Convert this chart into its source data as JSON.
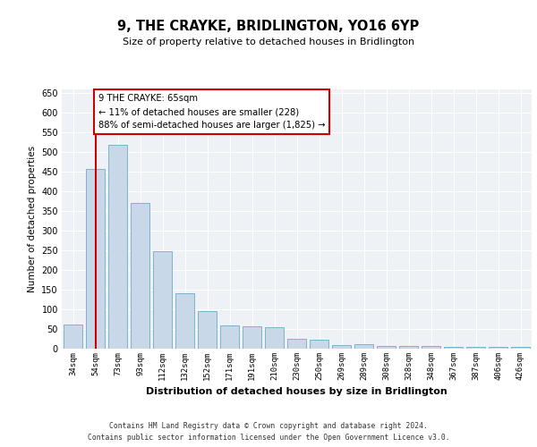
{
  "title": "9, THE CRAYKE, BRIDLINGTON, YO16 6YP",
  "subtitle": "Size of property relative to detached houses in Bridlington",
  "xlabel": "Distribution of detached houses by size in Bridlington",
  "ylabel": "Number of detached properties",
  "categories": [
    "34sqm",
    "54sqm",
    "73sqm",
    "93sqm",
    "112sqm",
    "132sqm",
    "152sqm",
    "171sqm",
    "191sqm",
    "210sqm",
    "230sqm",
    "250sqm",
    "269sqm",
    "289sqm",
    "308sqm",
    "328sqm",
    "348sqm",
    "367sqm",
    "387sqm",
    "406sqm",
    "426sqm"
  ],
  "values": [
    62,
    457,
    520,
    370,
    247,
    140,
    95,
    60,
    57,
    55,
    25,
    22,
    10,
    12,
    7,
    6,
    6,
    5,
    4,
    5,
    4
  ],
  "bar_color": "#c8d8e8",
  "bar_edge_color": "#7ab4cc",
  "vline_x": 1,
  "vline_color": "#cc0000",
  "annotation_text": "9 THE CRAYKE: 65sqm\n← 11% of detached houses are smaller (228)\n88% of semi-detached houses are larger (1,825) →",
  "annotation_box_color": "#ffffff",
  "annotation_box_edge": "#cc0000",
  "ylim": [
    0,
    660
  ],
  "yticks": [
    0,
    50,
    100,
    150,
    200,
    250,
    300,
    350,
    400,
    450,
    500,
    550,
    600,
    650
  ],
  "background_color": "#eef2f7",
  "grid_color": "#ffffff",
  "footer_line1": "Contains HM Land Registry data © Crown copyright and database right 2024.",
  "footer_line2": "Contains public sector information licensed under the Open Government Licence v3.0."
}
